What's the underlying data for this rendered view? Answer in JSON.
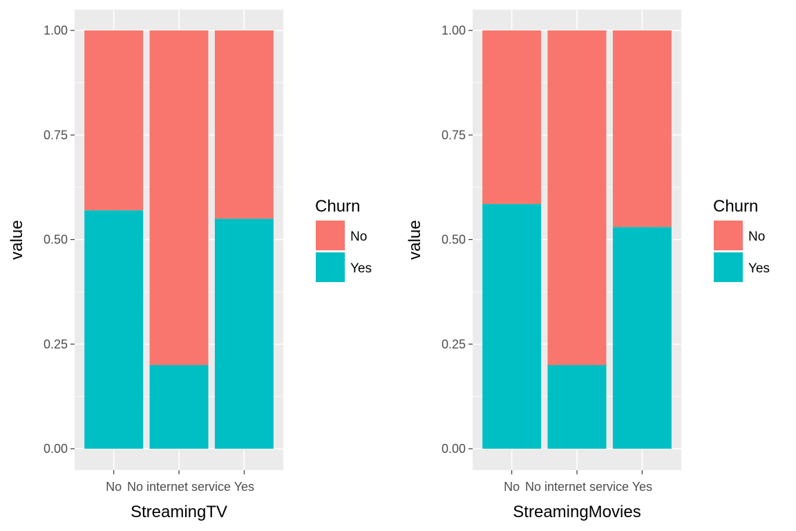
{
  "chart_data": [
    {
      "type": "bar",
      "stacked": true,
      "xlabel": "StreamingTV",
      "ylabel": "value",
      "categories": [
        "No",
        "No internet service",
        "Yes"
      ],
      "series": [
        {
          "name": "No",
          "values": [
            0.43,
            0.8,
            0.45
          ]
        },
        {
          "name": "Yes",
          "values": [
            0.57,
            0.2,
            0.55
          ]
        }
      ],
      "ylim": [
        0,
        1
      ],
      "yticks": [
        "0.00",
        "0.25",
        "0.50",
        "0.75",
        "1.00"
      ],
      "grid": true,
      "legend": {
        "title": "Churn",
        "position": "right",
        "entries": [
          "No",
          "Yes"
        ]
      }
    },
    {
      "type": "bar",
      "stacked": true,
      "xlabel": "StreamingMovies",
      "ylabel": "value",
      "categories": [
        "No",
        "No internet service",
        "Yes"
      ],
      "series": [
        {
          "name": "No",
          "values": [
            0.415,
            0.8,
            0.47
          ]
        },
        {
          "name": "Yes",
          "values": [
            0.585,
            0.2,
            0.53
          ]
        }
      ],
      "ylim": [
        0,
        1
      ],
      "yticks": [
        "0.00",
        "0.25",
        "0.50",
        "0.75",
        "1.00"
      ],
      "grid": true,
      "legend": {
        "title": "Churn",
        "position": "right",
        "entries": [
          "No",
          "Yes"
        ]
      }
    }
  ],
  "colors": {
    "No": "#F8766D",
    "Yes": "#00BFC4",
    "panel_background": "#EBEBEB",
    "grid": "#FFFFFF",
    "tick_text": "#4D4D4D",
    "tick_mark": "#333333"
  }
}
